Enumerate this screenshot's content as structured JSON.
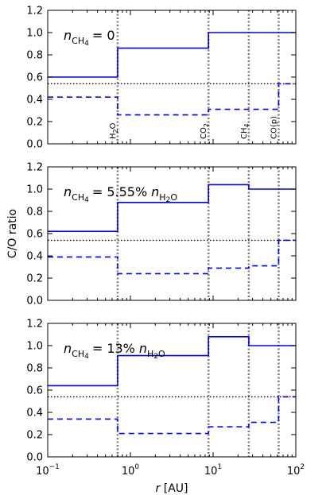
{
  "chart_data": {
    "type": "line",
    "xlabel": "r [AU]",
    "ylabel": "C/O ratio",
    "xscale": "log",
    "xlim": [
      0.1,
      100
    ],
    "ylim": [
      0.0,
      1.2
    ],
    "x_ticks": [
      {
        "value": 0.1,
        "base": "10",
        "exp": "−1"
      },
      {
        "value": 1,
        "base": "10",
        "exp": "0"
      },
      {
        "value": 10,
        "base": "10",
        "exp": "1"
      },
      {
        "value": 100,
        "base": "10",
        "exp": "2"
      }
    ],
    "y_ticks": [
      "0.0",
      "0.2",
      "0.4",
      "0.6",
      "0.8",
      "1.0",
      "1.2"
    ],
    "snowlines": [
      {
        "r": 0.7,
        "label": "H2O"
      },
      {
        "r": 8.8,
        "label": "CO2"
      },
      {
        "r": 27,
        "label": "CH4"
      },
      {
        "r": 62,
        "label": "CO(p)"
      }
    ],
    "reference_ratio": 0.54,
    "colors": {
      "gas": "#0000ff",
      "solid": "#0000ff",
      "snowline": "#808080",
      "reference": "#000000"
    },
    "panels": [
      {
        "annotation": "n_CH4 = 0",
        "ann_parts": {
          "lhs": "n",
          "lhs_sub": "CH",
          "lhs_sub2": "4",
          "eq": "= 0",
          "rhs": "",
          "rhs_sub": ""
        },
        "series": [
          {
            "style": "solid",
            "steps": [
              [
                0.1,
                0.7,
                0.6
              ],
              [
                0.7,
                8.8,
                0.86
              ],
              [
                8.8,
                62,
                1.0
              ],
              [
                62,
                100,
                1.0
              ]
            ]
          },
          {
            "style": "dashed",
            "steps": [
              [
                0.1,
                0.7,
                0.42
              ],
              [
                0.7,
                8.8,
                0.26
              ],
              [
                8.8,
                62,
                0.31
              ],
              [
                62,
                100,
                0.54
              ]
            ]
          }
        ]
      },
      {
        "annotation": "n_CH4 = 5.55% n_H2O",
        "ann_parts": {
          "lhs": "n",
          "lhs_sub": "CH",
          "lhs_sub2": "4",
          "eq": "= 5.55%",
          "rhs": "n",
          "rhs_sub": "H",
          "rhs_sub2": "2",
          "rhs_sub3": "O"
        },
        "series": [
          {
            "style": "solid",
            "steps": [
              [
                0.1,
                0.7,
                0.62
              ],
              [
                0.7,
                8.8,
                0.88
              ],
              [
                8.8,
                27,
                1.04
              ],
              [
                27,
                62,
                1.0
              ],
              [
                62,
                100,
                1.0
              ]
            ]
          },
          {
            "style": "dashed",
            "steps": [
              [
                0.1,
                0.7,
                0.39
              ],
              [
                0.7,
                8.8,
                0.24
              ],
              [
                8.8,
                27,
                0.29
              ],
              [
                27,
                62,
                0.31
              ],
              [
                62,
                100,
                0.54
              ]
            ]
          }
        ]
      },
      {
        "annotation": "n_CH4 = 13% n_H2O",
        "ann_parts": {
          "lhs": "n",
          "lhs_sub": "CH",
          "lhs_sub2": "4",
          "eq": "= 13%",
          "rhs": "n",
          "rhs_sub": "H",
          "rhs_sub2": "2",
          "rhs_sub3": "O"
        },
        "series": [
          {
            "style": "solid",
            "steps": [
              [
                0.1,
                0.7,
                0.64
              ],
              [
                0.7,
                8.8,
                0.91
              ],
              [
                8.8,
                27,
                1.08
              ],
              [
                27,
                62,
                1.0
              ],
              [
                62,
                100,
                1.0
              ]
            ]
          },
          {
            "style": "dashed",
            "steps": [
              [
                0.1,
                0.7,
                0.34
              ],
              [
                0.7,
                8.8,
                0.21
              ],
              [
                8.8,
                27,
                0.27
              ],
              [
                27,
                62,
                0.31
              ],
              [
                62,
                100,
                0.54
              ]
            ]
          }
        ]
      }
    ]
  }
}
